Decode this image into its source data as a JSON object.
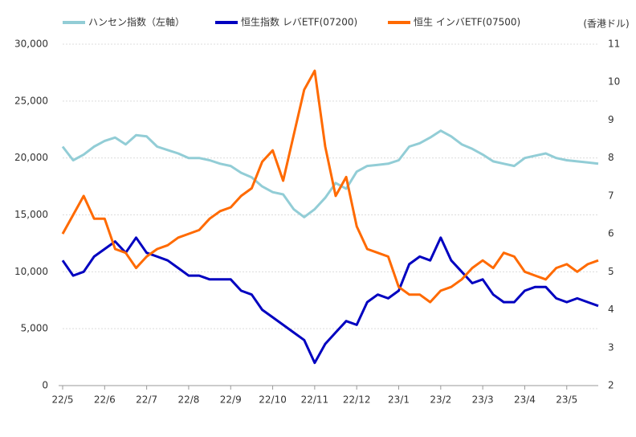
{
  "chart_data": {
    "type": "line",
    "y2_label": "(香港ドル)",
    "categories": [
      "22/5",
      null,
      null,
      null,
      "22/6",
      null,
      null,
      null,
      "22/7",
      null,
      null,
      null,
      "22/8",
      null,
      null,
      null,
      "22/9",
      null,
      null,
      null,
      "22/10",
      null,
      null,
      null,
      "22/11",
      null,
      null,
      null,
      "22/12",
      null,
      null,
      null,
      "23/1",
      null,
      null,
      null,
      "23/2",
      null,
      null,
      null,
      "23/3",
      null,
      null,
      null,
      "23/4",
      null,
      null,
      null,
      "23/5",
      null,
      null,
      null
    ],
    "series": [
      {
        "name": "ハンセン指数（左軸）",
        "color": "#92cdd6",
        "axis": "y",
        "values": [
          21000,
          19800,
          20300,
          21000,
          21500,
          21800,
          21200,
          22000,
          21900,
          21000,
          20700,
          20400,
          20000,
          20000,
          19800,
          19500,
          19300,
          18700,
          18300,
          17500,
          17000,
          16800,
          15500,
          14800,
          15500,
          16500,
          17800,
          17300,
          18800,
          19300,
          19400,
          19500,
          19800,
          21000,
          21300,
          21800,
          22400,
          21900,
          21200,
          20800,
          20300,
          19700,
          19500,
          19300,
          20000,
          20200,
          20400,
          20000,
          19800,
          19700,
          19600,
          19500
        ]
      },
      {
        "name": "恒生指数 レバETF(07200)",
        "color": "#0000c0",
        "axis": "y2",
        "values": [
          5.3,
          4.9,
          5.0,
          5.4,
          5.6,
          5.8,
          5.5,
          5.9,
          5.5,
          5.4,
          5.3,
          5.1,
          4.9,
          4.9,
          4.8,
          4.8,
          4.8,
          4.5,
          4.4,
          4.0,
          3.8,
          3.6,
          3.4,
          3.2,
          2.6,
          3.1,
          3.4,
          3.7,
          3.6,
          4.2,
          4.4,
          4.3,
          4.5,
          5.2,
          5.4,
          5.3,
          5.9,
          5.3,
          5.0,
          4.7,
          4.8,
          4.4,
          4.2,
          4.2,
          4.5,
          4.6,
          4.6,
          4.3,
          4.2,
          4.3,
          4.2,
          4.1
        ]
      },
      {
        "name": "恒生 インバETF(07500)",
        "color": "#ff6a00",
        "axis": "y2",
        "values": [
          6.0,
          6.5,
          7.0,
          6.4,
          6.4,
          5.6,
          5.5,
          5.1,
          5.4,
          5.6,
          5.7,
          5.9,
          6.0,
          6.1,
          6.4,
          6.6,
          6.7,
          7.0,
          7.2,
          7.9,
          8.2,
          7.4,
          8.6,
          9.8,
          10.3,
          8.3,
          7.0,
          7.5,
          6.2,
          5.6,
          5.5,
          5.4,
          4.6,
          4.4,
          4.4,
          4.2,
          4.5,
          4.6,
          4.8,
          5.1,
          5.3,
          5.1,
          5.5,
          5.4,
          5.0,
          4.9,
          4.8,
          5.1,
          5.2,
          5.0,
          5.2,
          5.3
        ]
      }
    ],
    "ylim": [
      0,
      30000
    ],
    "yticks": [
      0,
      {
        "value": 5000,
        "label": "5,000"
      },
      {
        "value": 10000,
        "label": "10,000"
      },
      {
        "value": 15000,
        "label": "15,000"
      },
      {
        "value": 20000,
        "label": "20,000"
      },
      {
        "value": 25000,
        "label": "25,000"
      },
      {
        "value": 30000,
        "label": "30,000"
      }
    ],
    "y2lim": [
      2,
      11
    ],
    "y2ticks": [
      2,
      3,
      4,
      5,
      6,
      7,
      8,
      9,
      10,
      11
    ],
    "grid": true
  }
}
